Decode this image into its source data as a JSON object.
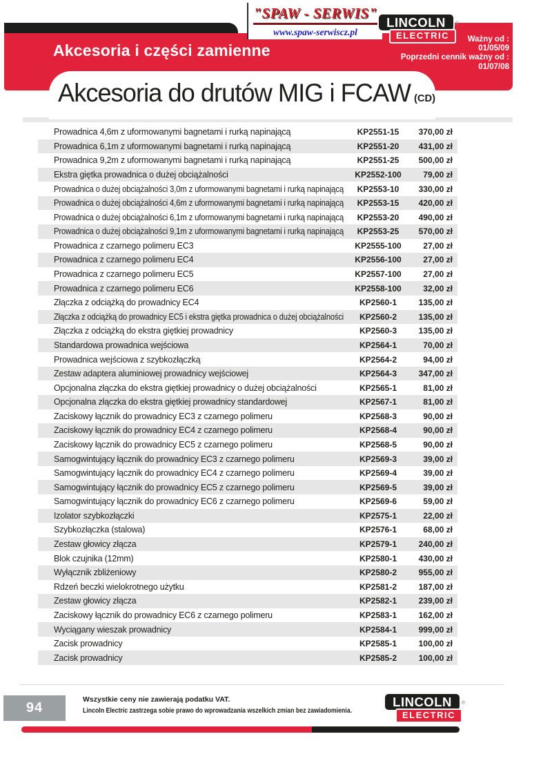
{
  "header": {
    "section_title": "Akcesoria i części zamienne",
    "page_title": "Akcesoria do drutów MIG i FCAW",
    "page_title_suffix": "(CD)",
    "validity": {
      "label1": "Ważny od :",
      "date1": "01/05/09",
      "label2": "Poprzedni cennik ważny od :",
      "date2": "01/07/08"
    },
    "spaw_logo": {
      "name": "\"SPAW - SERWIS\"",
      "url": "www.spaw-serwiscz.pl"
    },
    "lincoln_logo": {
      "line1": "LINCOLN",
      "line2": "ELECTRIC",
      "reg": "®"
    }
  },
  "table": {
    "rows": [
      {
        "desc": "Prowadnica 4,6m z uformowanymi bagnetami i rurką napinającą",
        "code": "KP2551-15",
        "price": "370,00 zł"
      },
      {
        "desc": "Prowadnica 6,1m z uformowanymi bagnetami i rurką napinającą",
        "code": "KP2551-20",
        "price": "431,00 zł"
      },
      {
        "desc": "Prowadnica 9,2m z uformowanymi bagnetami i rurką napinającą",
        "code": "KP2551-25",
        "price": "500,00 zł"
      },
      {
        "desc": "Ekstra giętka prowadnica o dużej obciążalności",
        "code": "KP2552-100",
        "price": "79,00 zł"
      },
      {
        "desc": "Prowadnica o dużej obciążalności 3,0m z uformowanymi bagnetami i rurką napinającą",
        "code": "KP2553-10",
        "price": "330,00 zł"
      },
      {
        "desc": "Prowadnica o dużej obciążalności 4,6m z uformowanymi bagnetami i rurką napinającą",
        "code": "KP2553-15",
        "price": "420,00 zł"
      },
      {
        "desc": "Prowadnica o dużej obciążalności 6,1m z uformowanymi bagnetami i rurką napinającą",
        "code": "KP2553-20",
        "price": "490,00 zł"
      },
      {
        "desc": "Prowadnica o dużej obciążalności 9,1m z uformowanymi bagnetami i rurką napinającą",
        "code": "KP2553-25",
        "price": "570,00 zł"
      },
      {
        "desc": "Prowadnica z czarnego polimeru EC3",
        "code": "KP2555-100",
        "price": "27,00 zł"
      },
      {
        "desc": "Prowadnica z czarnego polimeru EC4",
        "code": "KP2556-100",
        "price": "27,00 zł"
      },
      {
        "desc": "Prowadnica z czarnego polimeru EC5",
        "code": "KP2557-100",
        "price": "27,00 zł"
      },
      {
        "desc": "Prowadnica z czarnego polimeru EC6",
        "code": "KP2558-100",
        "price": "32,00 zł"
      },
      {
        "desc": "Złączka z odciążką do prowadnicy EC4",
        "code": "KP2560-1",
        "price": "135,00 zł"
      },
      {
        "desc": "Złączka z odciążką do prowadnicy EC5 i ekstra giętka prowadnica o dużej obciążalności",
        "code": "KP2560-2",
        "price": "135,00 zł"
      },
      {
        "desc": "Złączka z odciążką do ekstra giętkiej prowadnicy",
        "code": "KP2560-3",
        "price": "135,00 zł"
      },
      {
        "desc": "Standardowa prowadnica wejściowa",
        "code": "KP2564-1",
        "price": "70,00 zł"
      },
      {
        "desc": "Prowadnica wejściowa z szybkozłączką",
        "code": "KP2564-2",
        "price": "94,00 zł"
      },
      {
        "desc": "Zestaw adaptera aluminiowej prowadnicy wejściowej",
        "code": "KP2564-3",
        "price": "347,00 zł"
      },
      {
        "desc": "Opcjonalna złączka do ekstra giętkiej prowadnicy o dużej obciążalności",
        "code": "KP2565-1",
        "price": "81,00 zł"
      },
      {
        "desc": "Opcjonalna złączka do ekstra giętkiej prowadnicy standardowej",
        "code": "KP2567-1",
        "price": "81,00 zł"
      },
      {
        "desc": "Zaciskowy łącznik do prowadnicy EC3 z czarnego polimeru",
        "code": "KP2568-3",
        "price": "90,00 zł"
      },
      {
        "desc": "Zaciskowy łącznik do prowadnicy EC4 z czarnego polimeru",
        "code": "KP2568-4",
        "price": "90,00 zł"
      },
      {
        "desc": "Zaciskowy łącznik do prowadnicy EC5 z czarnego polimeru",
        "code": "KP2568-5",
        "price": "90,00 zł"
      },
      {
        "desc": "Samogwintujący łącznik do prowadnicy EC3 z czarnego polimeru",
        "code": "KP2569-3",
        "price": "39,00 zł"
      },
      {
        "desc": "Samogwintujący łącznik do prowadnicy EC4 z czarnego polimeru",
        "code": "KP2569-4",
        "price": "39,00 zł"
      },
      {
        "desc": "Samogwintujący łącznik do prowadnicy EC5 z czarnego polimeru",
        "code": "KP2569-5",
        "price": "39,00 zł"
      },
      {
        "desc": "Samogwintujący łącznik do prowadnicy EC6 z czarnego polimeru",
        "code": "KP2569-6",
        "price": "59,00 zł"
      },
      {
        "desc": "Izolator szybkozłączki",
        "code": "KP2575-1",
        "price": "22,00 zł"
      },
      {
        "desc": "Szybkozłączka (stalowa)",
        "code": "KP2576-1",
        "price": "68,00 zł"
      },
      {
        "desc": "Zestaw głowicy złącza",
        "code": "KP2579-1",
        "price": "240,00 zł"
      },
      {
        "desc": "Blok czujnika (12mm)",
        "code": "KP2580-1",
        "price": "430,00 zł"
      },
      {
        "desc": "Wyłącznik zbliżeniowy",
        "code": "KP2580-2",
        "price": "955,00 zł"
      },
      {
        "desc": "Rdzeń beczki wielokrotnego użytku",
        "code": "KP2581-2",
        "price": "187,00 zł"
      },
      {
        "desc": "Zestaw głowicy złącza",
        "code": "KP2582-1",
        "price": "239,00 zł"
      },
      {
        "desc": "Zaciskowy łącznik do prowadnicy EC6 z czarnego polimeru",
        "code": "KP2583-1",
        "price": "162,00 zł"
      },
      {
        "desc": "Wyciągany wieszak prowadnicy",
        "code": "KP2584-1",
        "price": "999,00 zł"
      },
      {
        "desc": "Zacisk prowadnicy",
        "code": "KP2585-1",
        "price": "100,00 zł"
      },
      {
        "desc": "Zacisk prowadnicy",
        "code": "KP2585-2",
        "price": "100,00 zł"
      }
    ]
  },
  "footer": {
    "page_number": "94",
    "note1": "Wszystkie ceny nie zawierają podatku VAT.",
    "note2": "Lincoln Electric zastrzega sobie prawo do wprowadzania wszelkich zmian bez zawiadomienia.",
    "lincoln_logo": {
      "line1": "LINCOLN",
      "line2": "ELECTRIC",
      "reg": "®"
    }
  },
  "colors": {
    "brand_red": "#e2223b",
    "brand_black": "#1d1d1b",
    "row_gray": "#e6e6e6",
    "footer_gray": "#9ba0a3",
    "spaw_red": "#d01f27",
    "spaw_blue": "#1d1db5"
  }
}
